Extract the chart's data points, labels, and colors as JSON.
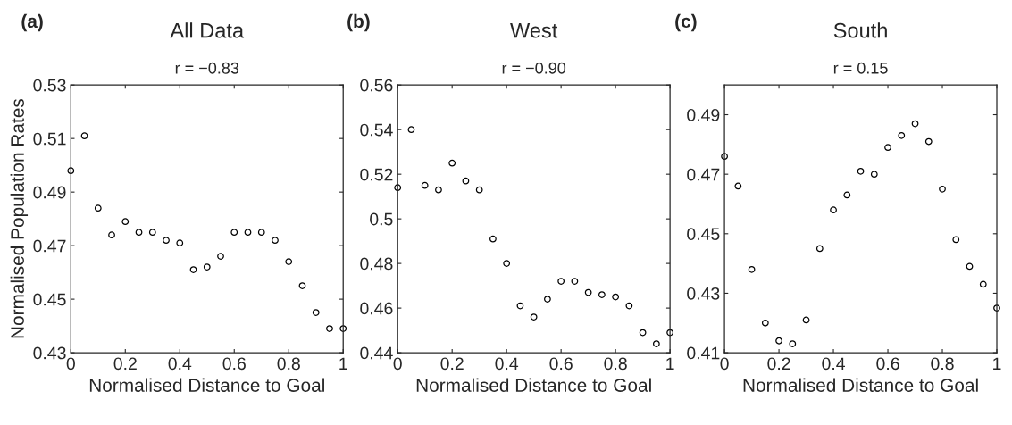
{
  "chart_data": [
    {
      "type": "scatter",
      "title": "All Data",
      "subtitle": "r = −0.83",
      "annotations": [
        "(a)"
      ],
      "xlabel": "Normalised Distance to Goal",
      "ylabel": "Normalised Population Rates",
      "x": [
        0,
        0.05,
        0.1,
        0.15,
        0.2,
        0.25,
        0.3,
        0.35,
        0.4,
        0.45,
        0.5,
        0.55,
        0.6,
        0.65,
        0.7,
        0.75,
        0.8,
        0.85,
        0.9,
        0.95,
        1
      ],
      "series": [
        {
          "color": "#000000",
          "values": [
            0.498,
            0.511,
            0.484,
            0.474,
            0.479,
            0.475,
            0.475,
            0.472,
            0.471,
            0.461,
            0.462,
            0.466,
            0.475,
            0.475,
            0.475,
            0.472,
            0.464,
            0.455,
            0.445,
            0.439,
            0.439
          ]
        }
      ],
      "marker": "circle",
      "xlim": [
        0,
        1
      ],
      "ylim": [
        0.43,
        0.53
      ],
      "xticks": [
        0,
        0.2,
        0.4,
        0.6,
        0.8,
        1
      ],
      "yticks": [
        0.43,
        0.45,
        0.47,
        0.49,
        0.51,
        0.53
      ],
      "grid": false
    },
    {
      "type": "scatter",
      "title": "West",
      "subtitle": "r = −0.90",
      "annotations": [
        "(b)"
      ],
      "xlabel": "Normalised Distance to Goal",
      "x": [
        0,
        0.05,
        0.1,
        0.15,
        0.2,
        0.25,
        0.3,
        0.35,
        0.4,
        0.45,
        0.5,
        0.55,
        0.6,
        0.65,
        0.7,
        0.75,
        0.8,
        0.85,
        0.9,
        0.95,
        1
      ],
      "series": [
        {
          "color": "#000000",
          "values": [
            0.514,
            0.54,
            0.515,
            0.513,
            0.525,
            0.517,
            0.513,
            0.491,
            0.48,
            0.461,
            0.456,
            0.464,
            0.472,
            0.472,
            0.467,
            0.466,
            0.465,
            0.461,
            0.449,
            0.444,
            0.449
          ]
        }
      ],
      "marker": "circle",
      "xlim": [
        0,
        1
      ],
      "ylim": [
        0.44,
        0.56
      ],
      "xticks": [
        0,
        0.2,
        0.4,
        0.6,
        0.8,
        1
      ],
      "yticks": [
        0.44,
        0.46,
        0.48,
        {
          "value": 0.5,
          "label": "0.5"
        },
        0.52,
        0.54,
        0.56
      ],
      "grid": false
    },
    {
      "type": "scatter",
      "title": "South",
      "subtitle": "r = 0.15",
      "annotations": [
        "(c)"
      ],
      "xlabel": "Normalised Distance to Goal",
      "x": [
        0,
        0.05,
        0.1,
        0.15,
        0.2,
        0.25,
        0.3,
        0.35,
        0.4,
        0.45,
        0.5,
        0.55,
        0.6,
        0.65,
        0.7,
        0.75,
        0.8,
        0.85,
        0.9,
        0.95,
        1
      ],
      "series": [
        {
          "color": "#000000",
          "values": [
            0.476,
            0.466,
            0.438,
            0.42,
            0.414,
            0.413,
            0.421,
            0.445,
            0.458,
            0.463,
            0.471,
            0.47,
            0.479,
            0.483,
            0.487,
            0.481,
            0.465,
            0.448,
            0.439,
            0.433,
            0.425
          ]
        }
      ],
      "marker": "circle",
      "xlim": [
        0,
        1
      ],
      "ylim": [
        0.41,
        0.5
      ],
      "xticks": [
        0,
        0.2,
        0.4,
        0.6,
        0.8,
        1
      ],
      "yticks": [
        0.41,
        0.43,
        0.45,
        0.47,
        0.49
      ],
      "grid": false
    }
  ]
}
